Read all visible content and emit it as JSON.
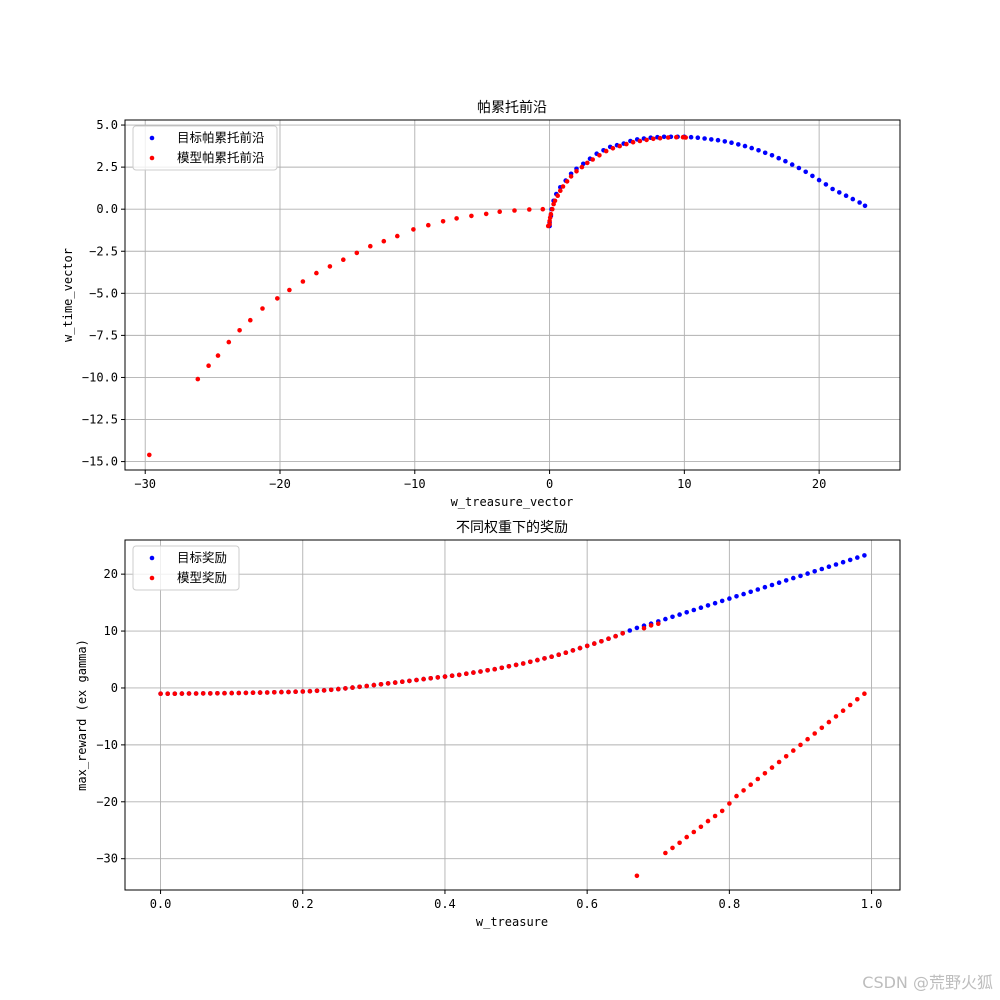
{
  "watermark": "CSDN @荒野火狐",
  "colors": {
    "target": "#0000ff",
    "model": "#ff0000",
    "grid": "#b0b0b0"
  },
  "chart_data": [
    {
      "type": "scatter",
      "title": "帕累托前沿",
      "xlabel": "w_treasure_vector",
      "ylabel": "w_time_vector",
      "xlim": [
        -31.5,
        26.0
      ],
      "ylim": [
        -15.5,
        5.3
      ],
      "xticks": [
        -30,
        -20,
        -10,
        0,
        10,
        20
      ],
      "yticks": [
        -15.0,
        -12.5,
        -10.0,
        -7.5,
        -5.0,
        -2.5,
        0.0,
        2.5,
        5.0
      ],
      "xtick_labels": [
        "−30",
        "−20",
        "−10",
        "0",
        "10",
        "20"
      ],
      "ytick_labels": [
        "−15.0",
        "−12.5",
        "−10.0",
        "−7.5",
        "−5.0",
        "−2.5",
        "0.0",
        "2.5",
        "5.0"
      ],
      "grid": true,
      "legend_position": "upper-left",
      "series": [
        {
          "name": "目标帕累托前沿",
          "color": "#0000ff",
          "points": [
            [
              0.0,
              -1.0
            ],
            [
              0.0,
              -0.8
            ],
            [
              0.1,
              -0.4
            ],
            [
              0.15,
              0.0
            ],
            [
              0.3,
              0.5
            ],
            [
              0.5,
              0.9
            ],
            [
              0.8,
              1.3
            ],
            [
              1.2,
              1.7
            ],
            [
              1.6,
              2.1
            ],
            [
              2.0,
              2.4
            ],
            [
              2.5,
              2.7
            ],
            [
              3.0,
              3.0
            ],
            [
              3.5,
              3.3
            ],
            [
              4.0,
              3.5
            ],
            [
              4.5,
              3.7
            ],
            [
              5.0,
              3.8
            ],
            [
              5.5,
              3.9
            ],
            [
              6.0,
              4.05
            ],
            [
              6.5,
              4.15
            ],
            [
              7.0,
              4.2
            ],
            [
              7.5,
              4.25
            ],
            [
              8.0,
              4.28
            ],
            [
              8.5,
              4.3
            ],
            [
              9.0,
              4.3
            ],
            [
              9.5,
              4.3
            ],
            [
              10.0,
              4.3
            ],
            [
              10.5,
              4.28
            ],
            [
              11.0,
              4.25
            ],
            [
              11.5,
              4.2
            ],
            [
              12.0,
              4.15
            ],
            [
              12.5,
              4.1
            ],
            [
              13.0,
              4.03
            ],
            [
              13.5,
              3.95
            ],
            [
              14.0,
              3.85
            ],
            [
              14.5,
              3.75
            ],
            [
              15.0,
              3.63
            ],
            [
              15.5,
              3.5
            ],
            [
              16.0,
              3.35
            ],
            [
              16.5,
              3.2
            ],
            [
              17.0,
              3.03
            ],
            [
              17.5,
              2.85
            ],
            [
              18.0,
              2.65
            ],
            [
              18.5,
              2.45
            ],
            [
              19.0,
              2.22
            ],
            [
              19.5,
              1.98
            ],
            [
              20.0,
              1.73
            ],
            [
              20.5,
              1.47
            ],
            [
              21.0,
              1.2
            ],
            [
              21.5,
              1.0
            ],
            [
              22.0,
              0.8
            ],
            [
              22.5,
              0.6
            ],
            [
              23.0,
              0.4
            ],
            [
              23.4,
              0.2
            ]
          ]
        },
        {
          "name": "模型帕累托前沿",
          "color": "#ff0000",
          "points": [
            [
              -29.7,
              -14.6
            ],
            [
              -26.1,
              -10.1
            ],
            [
              -25.3,
              -9.3
            ],
            [
              -24.6,
              -8.7
            ],
            [
              -23.8,
              -7.9
            ],
            [
              -23.0,
              -7.2
            ],
            [
              -22.2,
              -6.6
            ],
            [
              -21.3,
              -5.9
            ],
            [
              -20.2,
              -5.3
            ],
            [
              -19.3,
              -4.8
            ],
            [
              -18.3,
              -4.3
            ],
            [
              -17.3,
              -3.8
            ],
            [
              -16.3,
              -3.4
            ],
            [
              -15.3,
              -3.0
            ],
            [
              -14.3,
              -2.6
            ],
            [
              -13.3,
              -2.2
            ],
            [
              -12.3,
              -1.9
            ],
            [
              -11.3,
              -1.6
            ],
            [
              -10.1,
              -1.2
            ],
            [
              -9.0,
              -0.95
            ],
            [
              -7.9,
              -0.72
            ],
            [
              -6.9,
              -0.55
            ],
            [
              -5.8,
              -0.4
            ],
            [
              -4.7,
              -0.28
            ],
            [
              -3.7,
              -0.15
            ],
            [
              -2.6,
              -0.08
            ],
            [
              -1.5,
              -0.02
            ],
            [
              -0.5,
              0.0
            ],
            [
              -0.1,
              -1.0
            ],
            [
              0.0,
              -0.9
            ],
            [
              0.0,
              -0.7
            ],
            [
              0.05,
              -0.5
            ],
            [
              0.1,
              -0.3
            ],
            [
              0.2,
              0.0
            ],
            [
              0.3,
              0.3
            ],
            [
              0.4,
              0.5
            ],
            [
              0.6,
              0.8
            ],
            [
              0.8,
              1.1
            ],
            [
              1.0,
              1.35
            ],
            [
              1.3,
              1.65
            ],
            [
              1.6,
              1.95
            ],
            [
              2.0,
              2.25
            ],
            [
              2.4,
              2.5
            ],
            [
              2.8,
              2.75
            ],
            [
              3.2,
              2.95
            ],
            [
              3.7,
              3.2
            ],
            [
              4.2,
              3.45
            ],
            [
              4.7,
              3.62
            ],
            [
              5.2,
              3.75
            ],
            [
              5.7,
              3.87
            ],
            [
              6.2,
              3.98
            ],
            [
              6.7,
              4.05
            ],
            [
              7.2,
              4.12
            ],
            [
              7.7,
              4.18
            ],
            [
              8.2,
              4.22
            ],
            [
              8.8,
              4.26
            ],
            [
              9.4,
              4.28
            ],
            [
              9.9,
              4.28
            ],
            [
              10.1,
              4.26
            ]
          ]
        }
      ]
    },
    {
      "type": "scatter",
      "title": "不同权重下的奖励",
      "xlabel": "w_treasure",
      "ylabel": "max_reward (ex gamma)",
      "xlim": [
        -0.05,
        1.04
      ],
      "ylim": [
        -35.5,
        26.0
      ],
      "xticks": [
        0.0,
        0.2,
        0.4,
        0.6,
        0.8,
        1.0
      ],
      "yticks": [
        -30,
        -20,
        -10,
        0,
        10,
        20
      ],
      "xtick_labels": [
        "0.0",
        "0.2",
        "0.4",
        "0.6",
        "0.8",
        "1.0"
      ],
      "ytick_labels": [
        "−30",
        "−20",
        "−10",
        "0",
        "10",
        "20"
      ],
      "grid": true,
      "legend_position": "upper-left",
      "series": [
        {
          "name": "目标奖励",
          "color": "#0000ff",
          "x": [
            0.0,
            0.01,
            0.02,
            0.03,
            0.04,
            0.05,
            0.06,
            0.07,
            0.08,
            0.09,
            0.1,
            0.11,
            0.12,
            0.13,
            0.14,
            0.15,
            0.16,
            0.17,
            0.18,
            0.19,
            0.2,
            0.21,
            0.22,
            0.23,
            0.24,
            0.25,
            0.26,
            0.27,
            0.28,
            0.29,
            0.3,
            0.31,
            0.32,
            0.33,
            0.34,
            0.35,
            0.36,
            0.37,
            0.38,
            0.39,
            0.4,
            0.41,
            0.42,
            0.43,
            0.44,
            0.45,
            0.46,
            0.47,
            0.48,
            0.49,
            0.5,
            0.51,
            0.52,
            0.53,
            0.54,
            0.55,
            0.56,
            0.57,
            0.58,
            0.59,
            0.6,
            0.61,
            0.62,
            0.63,
            0.64,
            0.65,
            0.66,
            0.67,
            0.68,
            0.69,
            0.7,
            0.71,
            0.72,
            0.73,
            0.74,
            0.75,
            0.76,
            0.77,
            0.78,
            0.79,
            0.8,
            0.81,
            0.82,
            0.83,
            0.84,
            0.85,
            0.86,
            0.87,
            0.88,
            0.89,
            0.9,
            0.91,
            0.92,
            0.93,
            0.94,
            0.95,
            0.96,
            0.97,
            0.98,
            0.99
          ],
          "values": [
            -1.0,
            -1.0,
            -1.0,
            -0.99,
            -0.98,
            -0.97,
            -0.96,
            -0.95,
            -0.93,
            -0.92,
            -0.9,
            -0.88,
            -0.86,
            -0.84,
            -0.82,
            -0.79,
            -0.76,
            -0.73,
            -0.7,
            -0.66,
            -0.62,
            -0.57,
            -0.5,
            -0.42,
            -0.32,
            -0.2,
            -0.08,
            0.06,
            0.2,
            0.35,
            0.5,
            0.65,
            0.8,
            0.95,
            1.1,
            1.25,
            1.4,
            1.55,
            1.7,
            1.85,
            2.0,
            2.15,
            2.3,
            2.5,
            2.7,
            2.9,
            3.1,
            3.3,
            3.55,
            3.8,
            4.05,
            4.3,
            4.6,
            4.9,
            5.2,
            5.5,
            5.85,
            6.2,
            6.6,
            7.0,
            7.4,
            7.8,
            8.2,
            8.65,
            9.1,
            9.6,
            10.1,
            10.55,
            10.95,
            11.3,
            11.7,
            12.1,
            12.5,
            12.9,
            13.3,
            13.7,
            14.1,
            14.5,
            14.9,
            15.3,
            15.7,
            16.1,
            16.5,
            16.9,
            17.3,
            17.7,
            18.1,
            18.5,
            18.9,
            19.3,
            19.7,
            20.1,
            20.5,
            20.9,
            21.3,
            21.7,
            22.1,
            22.5,
            22.9,
            23.3
          ]
        },
        {
          "name": "模型奖励",
          "color": "#ff0000",
          "x": [
            0.0,
            0.01,
            0.02,
            0.03,
            0.04,
            0.05,
            0.06,
            0.07,
            0.08,
            0.09,
            0.1,
            0.11,
            0.12,
            0.13,
            0.14,
            0.15,
            0.16,
            0.17,
            0.18,
            0.19,
            0.2,
            0.21,
            0.22,
            0.23,
            0.24,
            0.25,
            0.26,
            0.27,
            0.28,
            0.29,
            0.3,
            0.31,
            0.32,
            0.33,
            0.34,
            0.35,
            0.36,
            0.37,
            0.38,
            0.39,
            0.4,
            0.41,
            0.42,
            0.43,
            0.44,
            0.45,
            0.46,
            0.47,
            0.48,
            0.49,
            0.5,
            0.51,
            0.52,
            0.53,
            0.54,
            0.55,
            0.56,
            0.57,
            0.58,
            0.59,
            0.6,
            0.61,
            0.62,
            0.63,
            0.64,
            0.65,
            0.66,
            0.67,
            0.68,
            0.69,
            0.7,
            0.71,
            0.72,
            0.73,
            0.74,
            0.75,
            0.76,
            0.77,
            0.78,
            0.79,
            0.8,
            0.81,
            0.82,
            0.83,
            0.84,
            0.85,
            0.86,
            0.87,
            0.88,
            0.89,
            0.9,
            0.91,
            0.92,
            0.93,
            0.94,
            0.95,
            0.96,
            0.97,
            0.98,
            0.99
          ],
          "values": [
            -1.0,
            -1.0,
            -1.0,
            -0.99,
            -0.98,
            -0.97,
            -0.96,
            -0.95,
            -0.93,
            -0.92,
            -0.9,
            -0.88,
            -0.86,
            -0.84,
            -0.82,
            -0.79,
            -0.76,
            -0.73,
            -0.7,
            -0.66,
            -0.62,
            -0.57,
            -0.5,
            -0.42,
            -0.32,
            -0.2,
            -0.08,
            0.06,
            0.2,
            0.35,
            0.5,
            0.65,
            0.8,
            0.95,
            1.1,
            1.25,
            1.4,
            1.55,
            1.7,
            1.85,
            2.0,
            2.15,
            2.3,
            2.5,
            2.7,
            2.9,
            3.1,
            3.3,
            3.55,
            3.8,
            4.05,
            4.3,
            4.6,
            4.9,
            5.2,
            5.5,
            5.85,
            6.2,
            6.6,
            7.0,
            7.4,
            7.8,
            8.2,
            8.65,
            9.1,
            9.6,
            null,
            -33.0,
            10.5,
            11.0,
            11.3,
            -29.0,
            -28.1,
            -27.2,
            -26.2,
            -25.3,
            -24.4,
            -23.4,
            -22.5,
            -21.6,
            -20.3,
            -19.0,
            -18.0,
            -17.0,
            -16.0,
            -15.0,
            -14.0,
            -13.0,
            -12.0,
            -11.0,
            -10.0,
            -9.0,
            -8.0,
            -7.0,
            -6.0,
            -5.0,
            -4.0,
            -3.0,
            -2.0,
            -1.0
          ],
          "extra_points": [
            [
              0.72,
              -28.1
            ],
            [
              0.73,
              -27.2
            ],
            [
              0.74,
              -26.2
            ]
          ]
        }
      ]
    }
  ]
}
